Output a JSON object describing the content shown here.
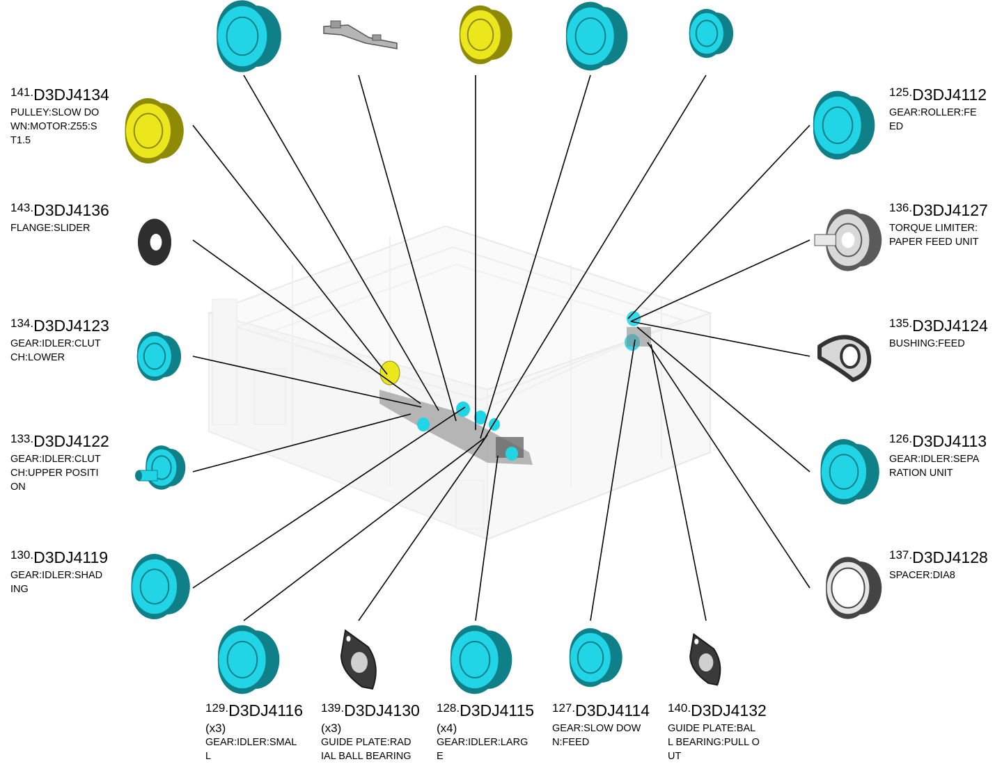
{
  "colors": {
    "gear": "#22d5e6",
    "gear_dark": "#0f7f88",
    "pulley": "#ece61c",
    "pulley_dark": "#8f8a05",
    "gray_part": "#d9d9d9",
    "dark_part": "#2e2e2e",
    "leader": "#000000"
  },
  "parts": [
    {
      "id": "p141",
      "num": "141.",
      "code": "D3DJ4134",
      "desc_lines": [
        "PULLEY:SLOW DO",
        "WN:MOTOR:Z55:S",
        "T1.5"
      ],
      "qty": "",
      "icon": "yellow-pulley-icon"
    },
    {
      "id": "p143",
      "num": "143.",
      "code": "D3DJ4136",
      "desc_lines": [
        "FLANGE:SLIDER"
      ],
      "qty": "",
      "icon": "black-flange-icon"
    },
    {
      "id": "p134",
      "num": "134.",
      "code": "D3DJ4123",
      "desc_lines": [
        "GEAR:IDLER:CLUT",
        "CH:LOWER"
      ],
      "qty": "",
      "icon": "cyan-gear-icon"
    },
    {
      "id": "p133",
      "num": "133.",
      "code": "D3DJ4122",
      "desc_lines": [
        "GEAR:IDLER:CLUT",
        "CH:UPPER POSITI",
        "ON"
      ],
      "qty": "",
      "icon": "cyan-clutch-gear-icon"
    },
    {
      "id": "p130",
      "num": "130.",
      "code": "D3DJ4119",
      "desc_lines": [
        "GEAR:IDLER:SHAD",
        "ING"
      ],
      "qty": "",
      "icon": "cyan-gear-icon"
    },
    {
      "id": "p125",
      "num": "125.",
      "code": "D3DJ4112",
      "desc_lines": [
        "GEAR:ROLLER:FE",
        "ED"
      ],
      "qty": "",
      "icon": "cyan-gear-icon"
    },
    {
      "id": "p136",
      "num": "136.",
      "code": "D3DJ4127",
      "desc_lines": [
        "TORQUE LIMITER:",
        "PAPER FEED UNIT"
      ],
      "qty": "",
      "icon": "torque-limiter-icon"
    },
    {
      "id": "p135",
      "num": "135.",
      "code": "D3DJ4124",
      "desc_lines": [
        "BUSHING:FEED"
      ],
      "qty": "",
      "icon": "bushing-icon"
    },
    {
      "id": "p126",
      "num": "126.",
      "code": "D3DJ4113",
      "desc_lines": [
        "GEAR:IDLER:SEPA",
        "RATION UNIT"
      ],
      "qty": "",
      "icon": "cyan-gear-icon"
    },
    {
      "id": "p137",
      "num": "137.",
      "code": "D3DJ4128",
      "desc_lines": [
        "SPACER:DIA8"
      ],
      "qty": "",
      "icon": "spacer-ring-icon"
    },
    {
      "id": "p129",
      "num": "129.",
      "code": "D3DJ4116",
      "desc_lines": [
        "GEAR:IDLER:SMAL",
        "L"
      ],
      "qty": "(x3)",
      "icon": "cyan-gear-icon"
    },
    {
      "id": "p139",
      "num": "139.",
      "code": "D3DJ4130",
      "desc_lines": [
        "GUIDE PLATE:RAD",
        "IAL BALL BEARING"
      ],
      "qty": "(x3)",
      "icon": "guide-plate-icon"
    },
    {
      "id": "p128",
      "num": "128.",
      "code": "D3DJ4115",
      "desc_lines": [
        "GEAR:IDLER:LARG",
        "E"
      ],
      "qty": "(x4)",
      "icon": "cyan-gear-icon"
    },
    {
      "id": "p127",
      "num": "127.",
      "code": "D3DJ4114",
      "desc_lines": [
        "GEAR:SLOW DOW",
        "N:FEED"
      ],
      "qty": "",
      "icon": "cyan-gear-icon"
    },
    {
      "id": "p140",
      "num": "140.",
      "code": "D3DJ4132",
      "desc_lines": [
        "GUIDE PLATE:BAL",
        "L BEARING:PULL O",
        "UT"
      ],
      "qty": "",
      "icon": "guide-plate-icon"
    }
  ],
  "top_parts": [
    {
      "id": "t1",
      "icon": "cyan-gear-icon"
    },
    {
      "id": "t2",
      "icon": "metal-bracket-icon"
    },
    {
      "id": "t3",
      "icon": "yellow-pulley-icon"
    },
    {
      "id": "t4",
      "icon": "cyan-gear-icon"
    },
    {
      "id": "t5",
      "icon": "cyan-gear-icon"
    }
  ]
}
